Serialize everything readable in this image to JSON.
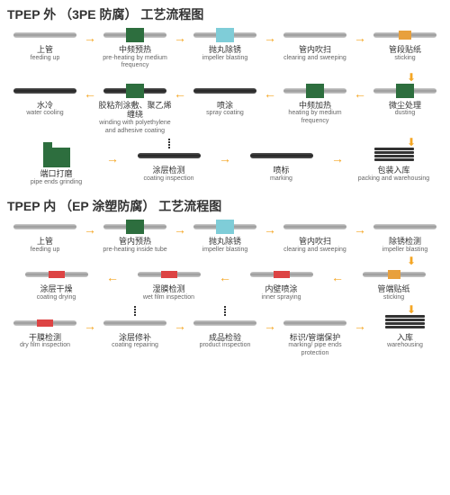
{
  "section1": {
    "title": "TPEP 外 （3PE 防腐） 工艺流程图",
    "rows": [
      [
        {
          "zh": "上管",
          "en": "feeding up",
          "eq": null,
          "pipe": "light"
        },
        {
          "zh": "中频预热",
          "en": "pre-heating by medium frequency",
          "eq": "green",
          "pipe": "light"
        },
        {
          "zh": "抛丸除锈",
          "en": "impeller blasting",
          "eq": "cyan",
          "pipe": "light"
        },
        {
          "zh": "管内吹扫",
          "en": "clearing and sweeping",
          "eq": null,
          "pipe": "light"
        },
        {
          "zh": "管段贴纸",
          "en": "sticking",
          "eq": "orange",
          "pipe": "light"
        }
      ],
      [
        {
          "zh": "水冷",
          "en": "water cooling",
          "eq": null,
          "pipe": "black"
        },
        {
          "zh": "胶粘剂涂敷、聚乙烯缠绕",
          "en": "winding with polyethylene and adhesive coating",
          "eq": "green",
          "pipe": "black"
        },
        {
          "zh": "喷涂",
          "en": "spray coating",
          "eq": null,
          "pipe": "black"
        },
        {
          "zh": "中频加热",
          "en": "heating by medium frequency",
          "eq": "green",
          "pipe": "light"
        },
        {
          "zh": "微尘处理",
          "en": "dusting",
          "eq": "green",
          "pipe": "light"
        }
      ],
      [
        {
          "zh": "端口打磨",
          "en": "pipe ends grinding",
          "eq": "grinder",
          "pipe": null
        },
        {
          "zh": "涂层检测",
          "en": "coating inspection",
          "eq": "spring",
          "pipe": "black"
        },
        {
          "zh": "喷标",
          "en": "marking",
          "eq": null,
          "pipe": "black"
        },
        {
          "zh": "包装入库",
          "en": "packing and warehousing",
          "eq": "stack",
          "pipe": null
        }
      ]
    ],
    "arrows": [
      [
        "→",
        "→",
        "→",
        "→"
      ],
      [
        "←",
        "←",
        "←",
        "←"
      ],
      [
        "→",
        "→",
        "→"
      ]
    ]
  },
  "section2": {
    "title": "TPEP 内 （EP 涂塑防腐） 工艺流程图",
    "rows": [
      [
        {
          "zh": "上管",
          "en": "feeding up",
          "eq": null,
          "pipe": "light"
        },
        {
          "zh": "管内预热",
          "en": "pre-heating inside tube",
          "eq": "green",
          "pipe": "light"
        },
        {
          "zh": "抛丸除锈",
          "en": "impeller blasting",
          "eq": "cyan",
          "pipe": "light"
        },
        {
          "zh": "管内吹扫",
          "en": "clearing and sweeping",
          "eq": null,
          "pipe": "light"
        },
        {
          "zh": "除锈检测",
          "en": "impeller blasting",
          "eq": null,
          "pipe": "light"
        }
      ],
      [
        {
          "zh": "涂层干燥",
          "en": "coating drying",
          "eq": "red",
          "pipe": "light"
        },
        {
          "zh": "湿膜检测",
          "en": "wet film inspection",
          "eq": "red",
          "pipe": "light"
        },
        {
          "zh": "内壁喷涂",
          "en": "inner spraying",
          "eq": "red",
          "pipe": "light"
        },
        {
          "zh": "管端贴纸",
          "en": "sticking",
          "eq": "orange",
          "pipe": "light"
        }
      ],
      [
        {
          "zh": "干膜检测",
          "en": "dry film inspection",
          "eq": "red",
          "pipe": "light"
        },
        {
          "zh": "涂层修补",
          "en": "coating repairing",
          "eq": "spring",
          "pipe": "light"
        },
        {
          "zh": "成品检验",
          "en": "product inspection",
          "eq": "spring",
          "pipe": "light"
        },
        {
          "zh": "标识/管端保护",
          "en": "marking/ pipe ends protection",
          "eq": null,
          "pipe": "light"
        },
        {
          "zh": "入库",
          "en": "warehousing",
          "eq": "stack",
          "pipe": null
        }
      ]
    ],
    "arrows": [
      [
        "→",
        "→",
        "→",
        "→"
      ],
      [
        "←",
        "←",
        "←"
      ],
      [
        "→",
        "→",
        "→",
        "→"
      ]
    ]
  },
  "colors": {
    "arrow": "#f5a623",
    "green": "#2d6e3e",
    "cyan": "#7fcdd8",
    "orange": "#e8a03d",
    "red": "#d44"
  }
}
